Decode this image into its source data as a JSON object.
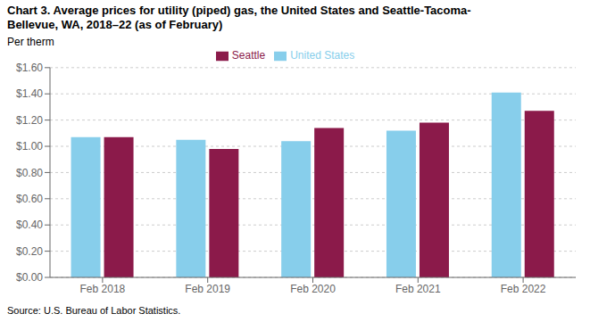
{
  "chart_data": {
    "type": "bar",
    "title": "Chart 3. Average prices for utility (piped) gas, the United States and Seattle-Tacoma-",
    "subtitle": "Bellevue, WA, 2018–22 (as of February)",
    "y_label": "Per therm",
    "annotations": [
      "Source: U.S. Bureau of Labor Statistics."
    ],
    "categories": [
      "Feb 2018",
      "Feb 2019",
      "Feb 2020",
      "Feb 2021",
      "Feb 2022"
    ],
    "series": [
      {
        "name": "United States",
        "color": "#87CEEB",
        "values": [
          1.07,
          1.05,
          1.04,
          1.12,
          1.41
        ]
      },
      {
        "name": "Seattle",
        "color": "#8B1A4A",
        "values": [
          1.07,
          0.98,
          1.14,
          1.18,
          1.27
        ]
      }
    ],
    "ylim": [
      0.0,
      1.6
    ],
    "yticks": [
      {
        "value": 0.0,
        "label": "$0.00"
      },
      {
        "value": 0.2,
        "label": "$0.20"
      },
      {
        "value": 0.4,
        "label": "$0.40"
      },
      {
        "value": 0.6,
        "label": "$0.60"
      },
      {
        "value": 0.8,
        "label": "$0.80"
      },
      {
        "value": 1.0,
        "label": "$1.00"
      },
      {
        "value": 1.2,
        "label": "$1.20"
      },
      {
        "value": 1.4,
        "label": "$1.40"
      },
      {
        "value": 1.6,
        "label": "$1.60"
      }
    ],
    "grid": true,
    "legend": "top"
  }
}
